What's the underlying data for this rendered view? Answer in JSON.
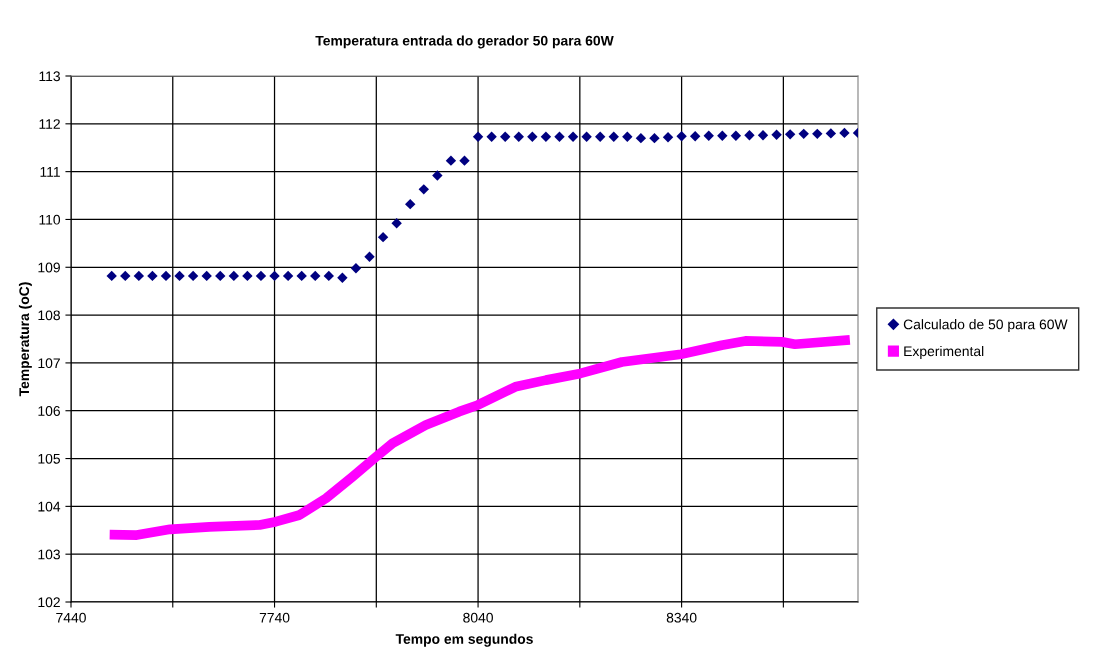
{
  "chart_data": {
    "type": "scatter",
    "title": "Temperatura entrada do gerador 50 para 60W",
    "xlabel": "Tempo em segundos",
    "ylabel": "Temperatura (oC)",
    "xlim": [
      7440,
      8600
    ],
    "xticks": [
      7440,
      {
        "value": 7590,
        "label": null
      },
      7740,
      {
        "value": 7890,
        "label": null
      },
      8040,
      {
        "value": 8190,
        "label": null
      },
      8340,
      {
        "value": 8490,
        "label": null
      }
    ],
    "ylim": [
      102,
      113
    ],
    "yticks": [
      102,
      103,
      104,
      105,
      106,
      107,
      108,
      109,
      110,
      111,
      112,
      113
    ],
    "grid": true,
    "legend": "right",
    "series": [
      {
        "name": "Calculado de 50 para 60W",
        "marker": "diamond",
        "color": "#000080",
        "x": [
          7500,
          7520,
          7540,
          7560,
          7580,
          7600,
          7620,
          7640,
          7660,
          7680,
          7700,
          7720,
          7740,
          7760,
          7780,
          7800,
          7820,
          7840,
          7860,
          7880,
          7900,
          7920,
          7940,
          7960,
          7980,
          8000,
          8020,
          8040,
          8060,
          8080,
          8100,
          8120,
          8140,
          8160,
          8180,
          8200,
          8220,
          8240,
          8260,
          8280,
          8300,
          8320,
          8340,
          8360,
          8380,
          8400,
          8420,
          8440,
          8460,
          8480,
          8500,
          8520,
          8540,
          8560,
          8580,
          8600
        ],
        "values": [
          108.82,
          108.82,
          108.82,
          108.82,
          108.82,
          108.82,
          108.82,
          108.82,
          108.82,
          108.82,
          108.82,
          108.82,
          108.82,
          108.82,
          108.82,
          108.82,
          108.82,
          108.78,
          108.98,
          109.22,
          109.63,
          109.92,
          110.32,
          110.63,
          110.92,
          111.23,
          111.23,
          111.73,
          111.73,
          111.73,
          111.73,
          111.73,
          111.73,
          111.73,
          111.73,
          111.73,
          111.73,
          111.73,
          111.73,
          111.7,
          111.7,
          111.72,
          111.74,
          111.74,
          111.75,
          111.75,
          111.75,
          111.76,
          111.76,
          111.77,
          111.78,
          111.79,
          111.79,
          111.8,
          111.81,
          111.81
        ]
      },
      {
        "name": "Experimental",
        "type": "line",
        "marker": "none",
        "color": "#ff00ff",
        "x": [
          7497,
          7537,
          7586,
          7644,
          7718,
          7742,
          7777,
          7816,
          7855,
          7890,
          7914,
          7963,
          8012,
          8040,
          8095,
          8140,
          8191,
          8252,
          8339,
          8399,
          8434,
          8488,
          8507,
          8588
        ],
        "values": [
          103.41,
          103.4,
          103.52,
          103.57,
          103.61,
          103.68,
          103.82,
          104.17,
          104.62,
          105.04,
          105.32,
          105.7,
          105.98,
          106.12,
          106.5,
          106.64,
          106.78,
          107.02,
          107.18,
          107.37,
          107.46,
          107.44,
          107.39,
          107.48
        ]
      }
    ]
  }
}
